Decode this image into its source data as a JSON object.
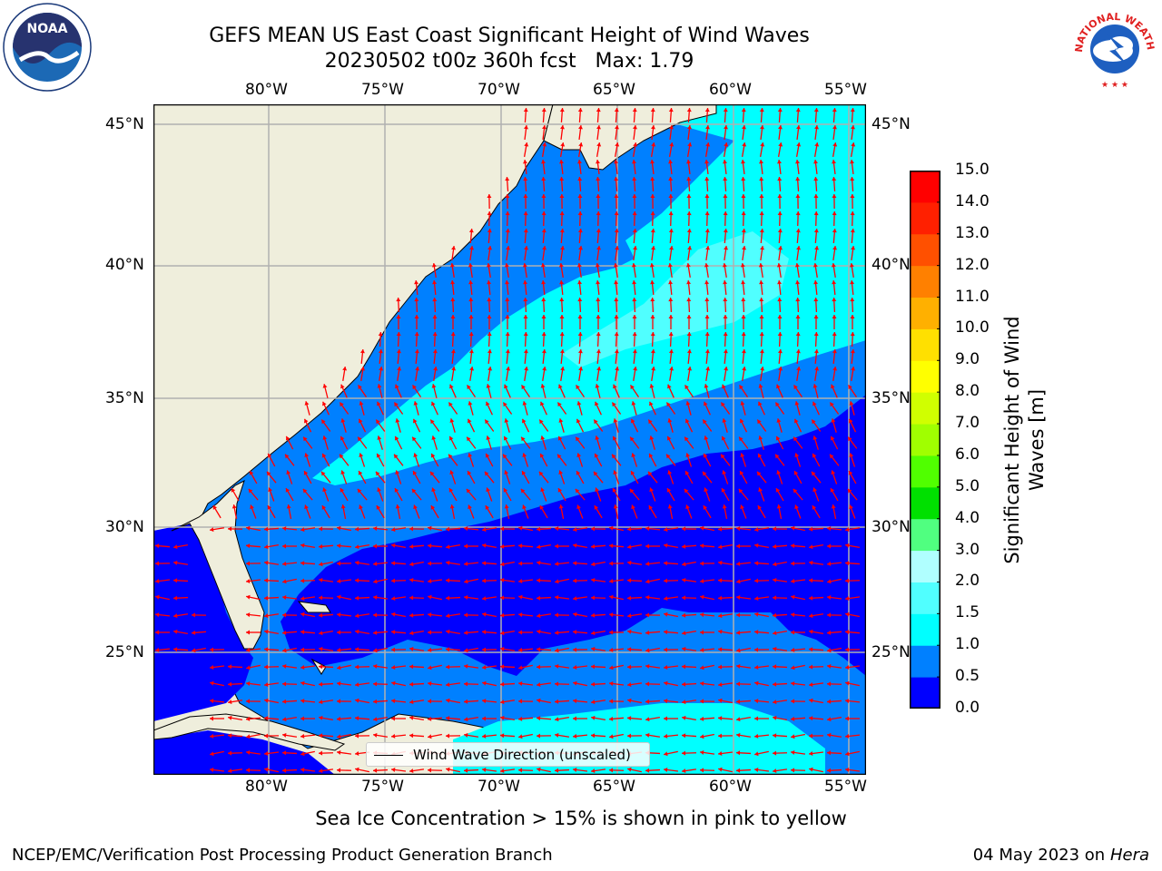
{
  "title": {
    "line1": "GEFS MEAN US East Coast Significant Height of Wind Waves",
    "line2": "20230502 t00z 360h fcst   Max: 1.79"
  },
  "map": {
    "lon_ticks_top": [
      "80°W",
      "75°W",
      "70°W",
      "65°W",
      "60°W",
      "55°W"
    ],
    "lon_ticks_bottom": [
      "80°W",
      "75°W",
      "70°W",
      "65°W",
      "60°W",
      "55°W"
    ],
    "lat_ticks_left": [
      "45°N",
      "40°N",
      "35°N",
      "30°N",
      "25°N"
    ],
    "lat_ticks_right": [
      "45°N",
      "40°N",
      "35°N",
      "30°N",
      "25°N"
    ],
    "lon_range": [
      -85,
      -54.4
    ],
    "lat_range": [
      20.5,
      46.3
    ],
    "land_color": "#efeedc",
    "arrow_color": "#ff0000",
    "grid": true
  },
  "legend": {
    "label": "Wind Wave Direction (unscaled)"
  },
  "colorbar": {
    "title_line1": "Significant Height of Wind",
    "title_line2": "Waves [m]",
    "labels": [
      "0.0",
      "0.5",
      "1.0",
      "1.5",
      "2.0",
      "3.0",
      "4.0",
      "5.0",
      "6.0",
      "7.0",
      "8.0",
      "9.0",
      "10.0",
      "11.0",
      "12.0",
      "13.0",
      "14.0",
      "15.0"
    ],
    "colors": [
      "#0000ff",
      "#0080ff",
      "#00ffff",
      "#50ffff",
      "#b0ffff",
      "#50ff80",
      "#00e000",
      "#50ff00",
      "#a0ff00",
      "#d0ff00",
      "#ffff00",
      "#ffe000",
      "#ffb000",
      "#ff8000",
      "#ff5000",
      "#ff2000",
      "#ff0000"
    ]
  },
  "footer": {
    "note": "Sea Ice Concentration > 15% is shown in pink to yellow",
    "credit": "NCEP/EMC/Verification Post Processing Product Generation Branch",
    "date": "04 May 2023 on",
    "machine": "Hera"
  },
  "logos": {
    "noaa_text": "NOAA",
    "nws_text": "NATIONAL WEATHER SERVICE"
  }
}
